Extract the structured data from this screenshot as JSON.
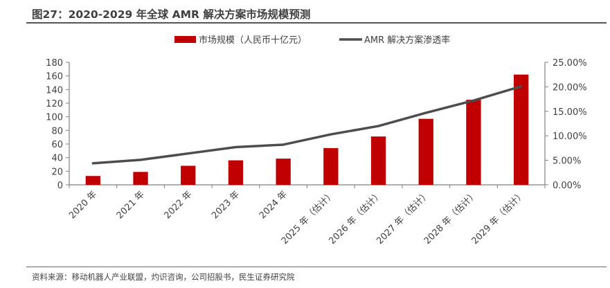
{
  "header": {
    "title": "图27：2020-2029 年全球 AMR 解决方案市场规模预测"
  },
  "footer": {
    "source": "资料来源：移动机器人产业联盟，灼识咨询，公司招股书，民生证券研究院"
  },
  "colors": {
    "bar": "#c00000",
    "line": "#4d4d4d",
    "axis": "#7f7f7f",
    "text": "#404040"
  },
  "chart_data": {
    "type": "bar",
    "title": "2020-2029 年全球 AMR 解决方案市场规模预测",
    "categories": [
      "2020 年",
      "2021 年",
      "2022 年",
      "2023 年",
      "2024 年",
      "2025 年（估计）",
      "2026 年（估计）",
      "2027 年（估计）",
      "2028 年（估计）",
      "2029 年（估计）"
    ],
    "series": [
      {
        "name": "市场规模（人民币十亿元）",
        "type": "bar",
        "axis": "left",
        "values": [
          13,
          19,
          28,
          36,
          38.5,
          54,
          71,
          97,
          125,
          162
        ]
      },
      {
        "name": "AMR 解决方案渗透率",
        "type": "line",
        "axis": "right",
        "values": [
          4.4,
          5.1,
          6.4,
          7.7,
          8.2,
          10.3,
          12.0,
          14.7,
          17.2,
          20.1
        ]
      }
    ],
    "y_left": {
      "ylim": [
        0,
        180
      ],
      "ticks": [
        0,
        20,
        40,
        60,
        80,
        100,
        120,
        140,
        160,
        180
      ],
      "tick_labels": [
        "0",
        "20",
        "40",
        "60",
        "80",
        "100",
        "120",
        "140",
        "160",
        "180"
      ]
    },
    "y_right": {
      "ylim": [
        0,
        25
      ],
      "ticks": [
        0,
        5,
        10,
        15,
        20,
        25
      ],
      "tick_labels": [
        "0.00%",
        "5.00%",
        "10.00%",
        "15.00%",
        "20.00%",
        "25.00%"
      ]
    },
    "xlabel": "",
    "ylabel": "",
    "grid": false,
    "legend": {
      "placement": "top-center",
      "entries": [
        "市场规模（人民币十亿元）",
        "AMR 解决方案渗透率"
      ]
    }
  }
}
